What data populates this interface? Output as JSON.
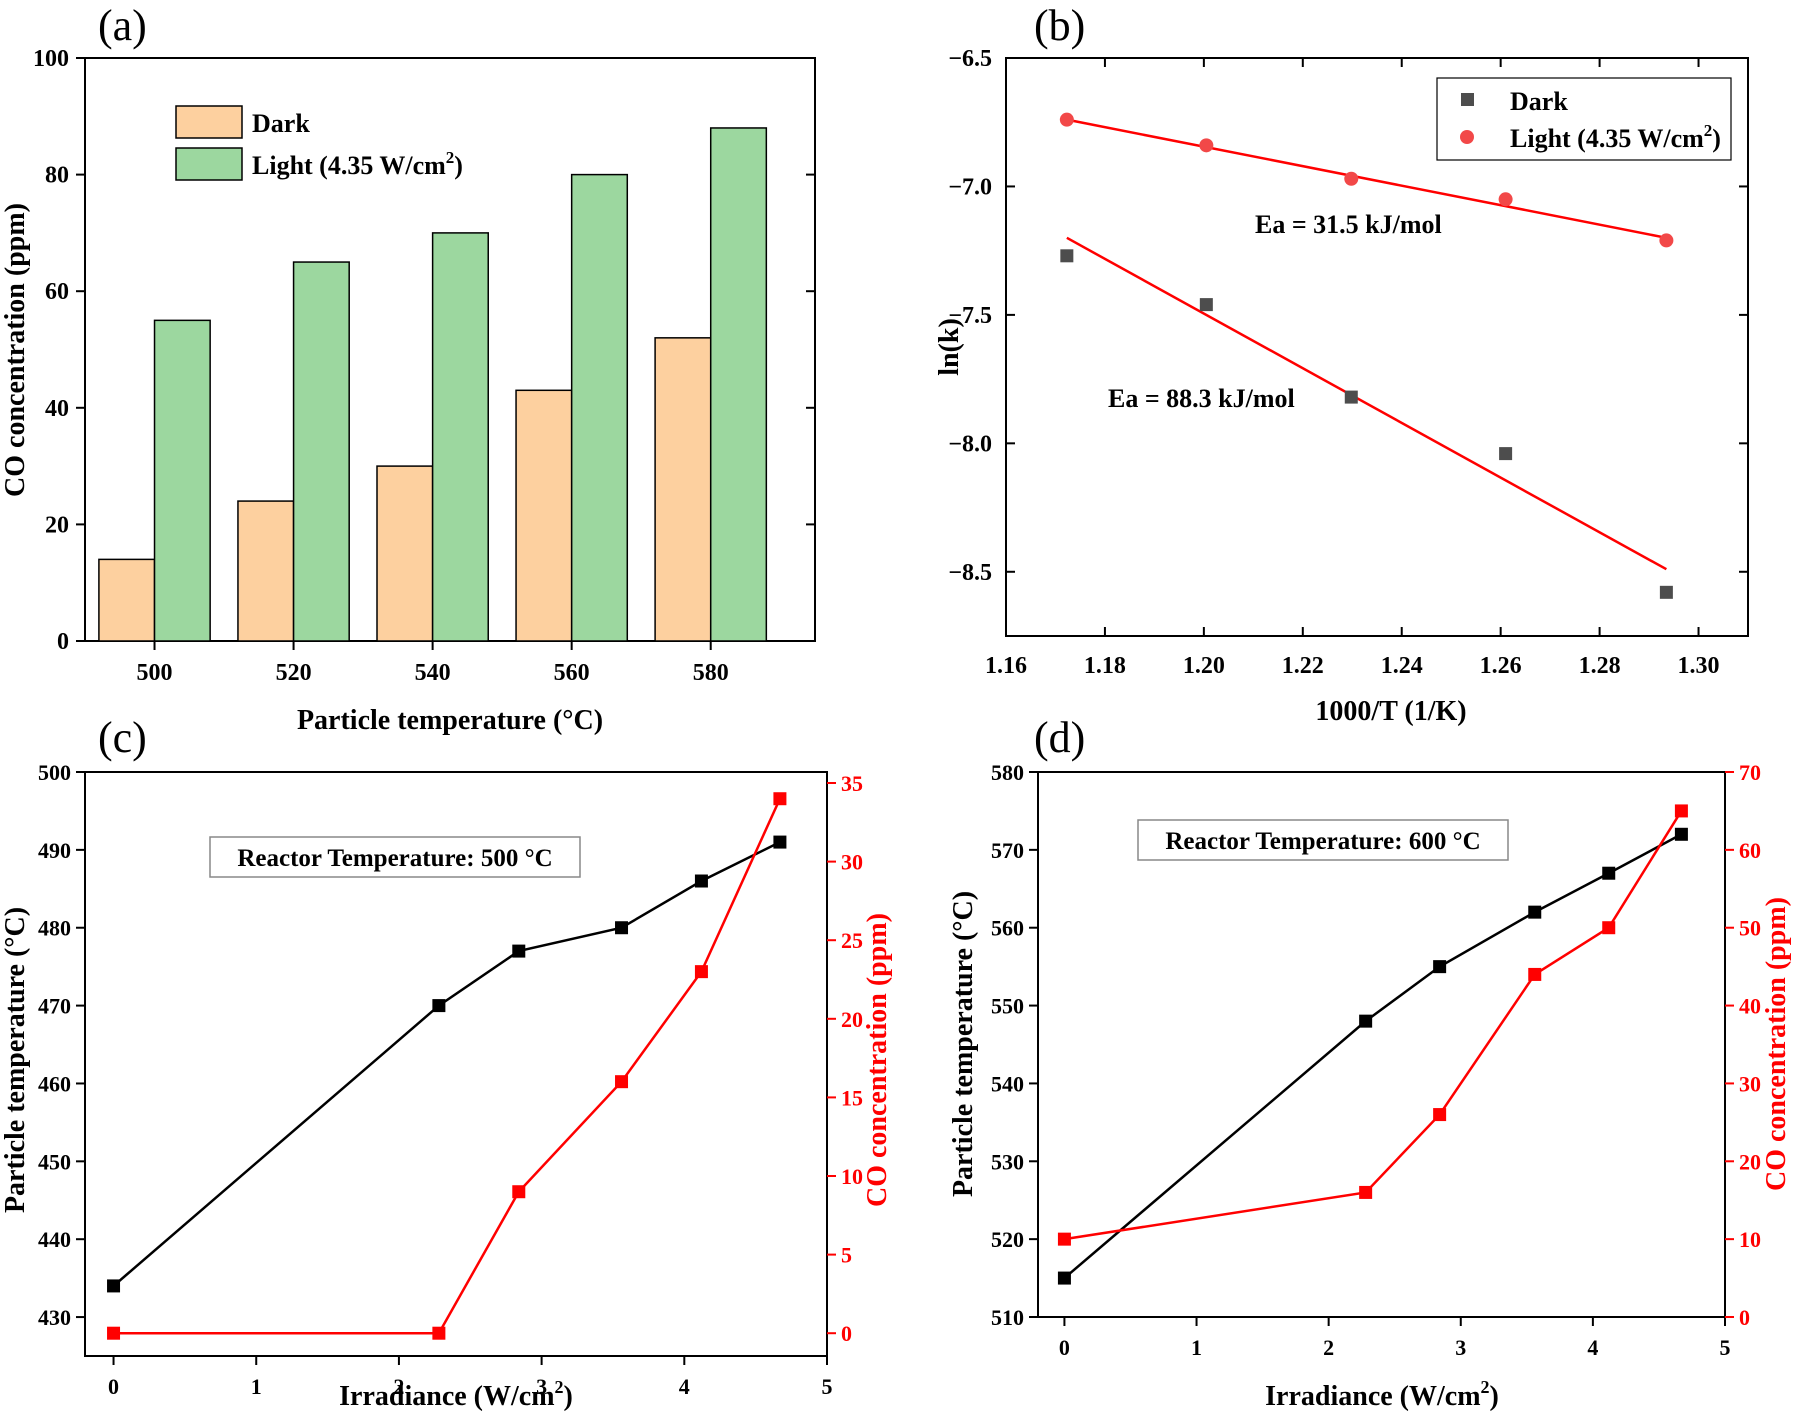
{
  "chart_data": [
    {
      "panel_label": "(a)",
      "type": "bar",
      "xlabel": "Particle temperature (°C)",
      "ylabel": "CO concentration (ppm)",
      "categories": [
        "500",
        "520",
        "540",
        "560",
        "580"
      ],
      "ylim": [
        0,
        100
      ],
      "yticks": [
        "0",
        "20",
        "40",
        "60",
        "80",
        "100"
      ],
      "legend_position": "top-left",
      "series": [
        {
          "name": "Dark",
          "color": "#fdd09f",
          "values": [
            14,
            24,
            30,
            43,
            52
          ]
        },
        {
          "name_base": "Light (4.35 W/cm",
          "name_sup": "2",
          "name_tail": ")",
          "color": "#9cd79f",
          "values": [
            55,
            65,
            70,
            80,
            88
          ]
        }
      ]
    },
    {
      "panel_label": "(b)",
      "type": "scatter",
      "xlabel": "1000/T (1/K)",
      "ylabel": "ln(k)",
      "xlim": [
        1.16,
        1.31
      ],
      "ylim": [
        -8.75,
        -6.5
      ],
      "xticks": [
        "1.16",
        "1.18",
        "1.20",
        "1.22",
        "1.24",
        "1.26",
        "1.28",
        "1.30"
      ],
      "yticks": [
        "-6.5",
        "-7.0",
        "-7.5",
        "-8.0",
        "-8.5"
      ],
      "legend_position": "top-right",
      "series": [
        {
          "name": "Dark",
          "color": "#4d4d4d",
          "marker": "square",
          "x": [
            1.1723,
            1.2005,
            1.2298,
            1.261,
            1.2935
          ],
          "y": [
            -7.27,
            -7.46,
            -7.82,
            -8.04,
            -8.58
          ],
          "fit": {
            "x": [
              1.1723,
              1.2935
            ],
            "y": [
              -7.2,
              -8.49
            ]
          }
        },
        {
          "name_base": "Light (4.35 W/cm",
          "name_sup": "2",
          "name_tail": ")",
          "color": "#f24848",
          "marker": "circle",
          "x": [
            1.1723,
            1.2005,
            1.2298,
            1.261,
            1.2935
          ],
          "y": [
            -6.74,
            -6.84,
            -6.97,
            -7.05,
            -7.21
          ],
          "fit": {
            "x": [
              1.1723,
              1.2935
            ],
            "y": [
              -6.74,
              -7.2
            ]
          }
        }
      ],
      "annotations": [
        "Ea = 31.5 kJ/mol",
        "Ea = 88.3 kJ/mol"
      ]
    },
    {
      "panel_label": "(c)",
      "type": "line",
      "xlabel_base": "Irradiance (W/cm",
      "xlabel_sup": "2",
      "xlabel_tail": ")",
      "ylabel": "Particle temperature (°C)",
      "ylabel_right": "CO concentration (ppm)",
      "xlim": [
        -0.2,
        5
      ],
      "ylim": [
        425,
        500
      ],
      "ylim_right": [
        -1.45,
        35.7
      ],
      "xticks": [
        "0",
        "1",
        "2",
        "3",
        "4",
        "5"
      ],
      "yticks": [
        "430",
        "440",
        "450",
        "460",
        "470",
        "480",
        "490",
        "500"
      ],
      "yticks_right": [
        "0",
        "5",
        "10",
        "15",
        "20",
        "25",
        "30",
        "35"
      ],
      "box_label": "Reactor Temperature: 500 °C",
      "series": [
        {
          "axis": "left",
          "color": "#000000",
          "x": [
            0,
            2.28,
            2.84,
            3.56,
            4.12,
            4.67
          ],
          "y": [
            434,
            470,
            477,
            480,
            486,
            491
          ]
        },
        {
          "axis": "right",
          "color": "#ff0000",
          "x": [
            0,
            2.28,
            2.84,
            3.56,
            4.12,
            4.67
          ],
          "y": [
            0,
            0,
            9,
            16,
            23,
            34
          ]
        }
      ]
    },
    {
      "panel_label": "(d)",
      "type": "line",
      "xlabel_base": "Irradiance (W/cm",
      "xlabel_sup": "2",
      "xlabel_tail": ")",
      "ylabel": "Particle temperature (°C)",
      "ylabel_right": "CO concentration (ppm)",
      "xlim": [
        -0.2,
        5
      ],
      "ylim": [
        510,
        580
      ],
      "ylim_right": [
        0,
        70
      ],
      "xticks": [
        "0",
        "1",
        "2",
        "3",
        "4",
        "5"
      ],
      "yticks": [
        "510",
        "520",
        "530",
        "540",
        "550",
        "560",
        "570",
        "580"
      ],
      "yticks_right": [
        "0",
        "10",
        "20",
        "30",
        "40",
        "50",
        "60",
        "70"
      ],
      "box_label": "Reactor Temperature: 600 °C",
      "series": [
        {
          "axis": "left",
          "color": "#000000",
          "x": [
            0,
            2.28,
            2.84,
            3.56,
            4.12,
            4.67
          ],
          "y": [
            515,
            548,
            555,
            562,
            567,
            572
          ]
        },
        {
          "axis": "right",
          "color": "#ff0000",
          "x": [
            0,
            2.28,
            2.84,
            3.56,
            4.12,
            4.67
          ],
          "y": [
            10,
            16,
            26,
            44,
            50,
            65
          ]
        }
      ]
    }
  ]
}
